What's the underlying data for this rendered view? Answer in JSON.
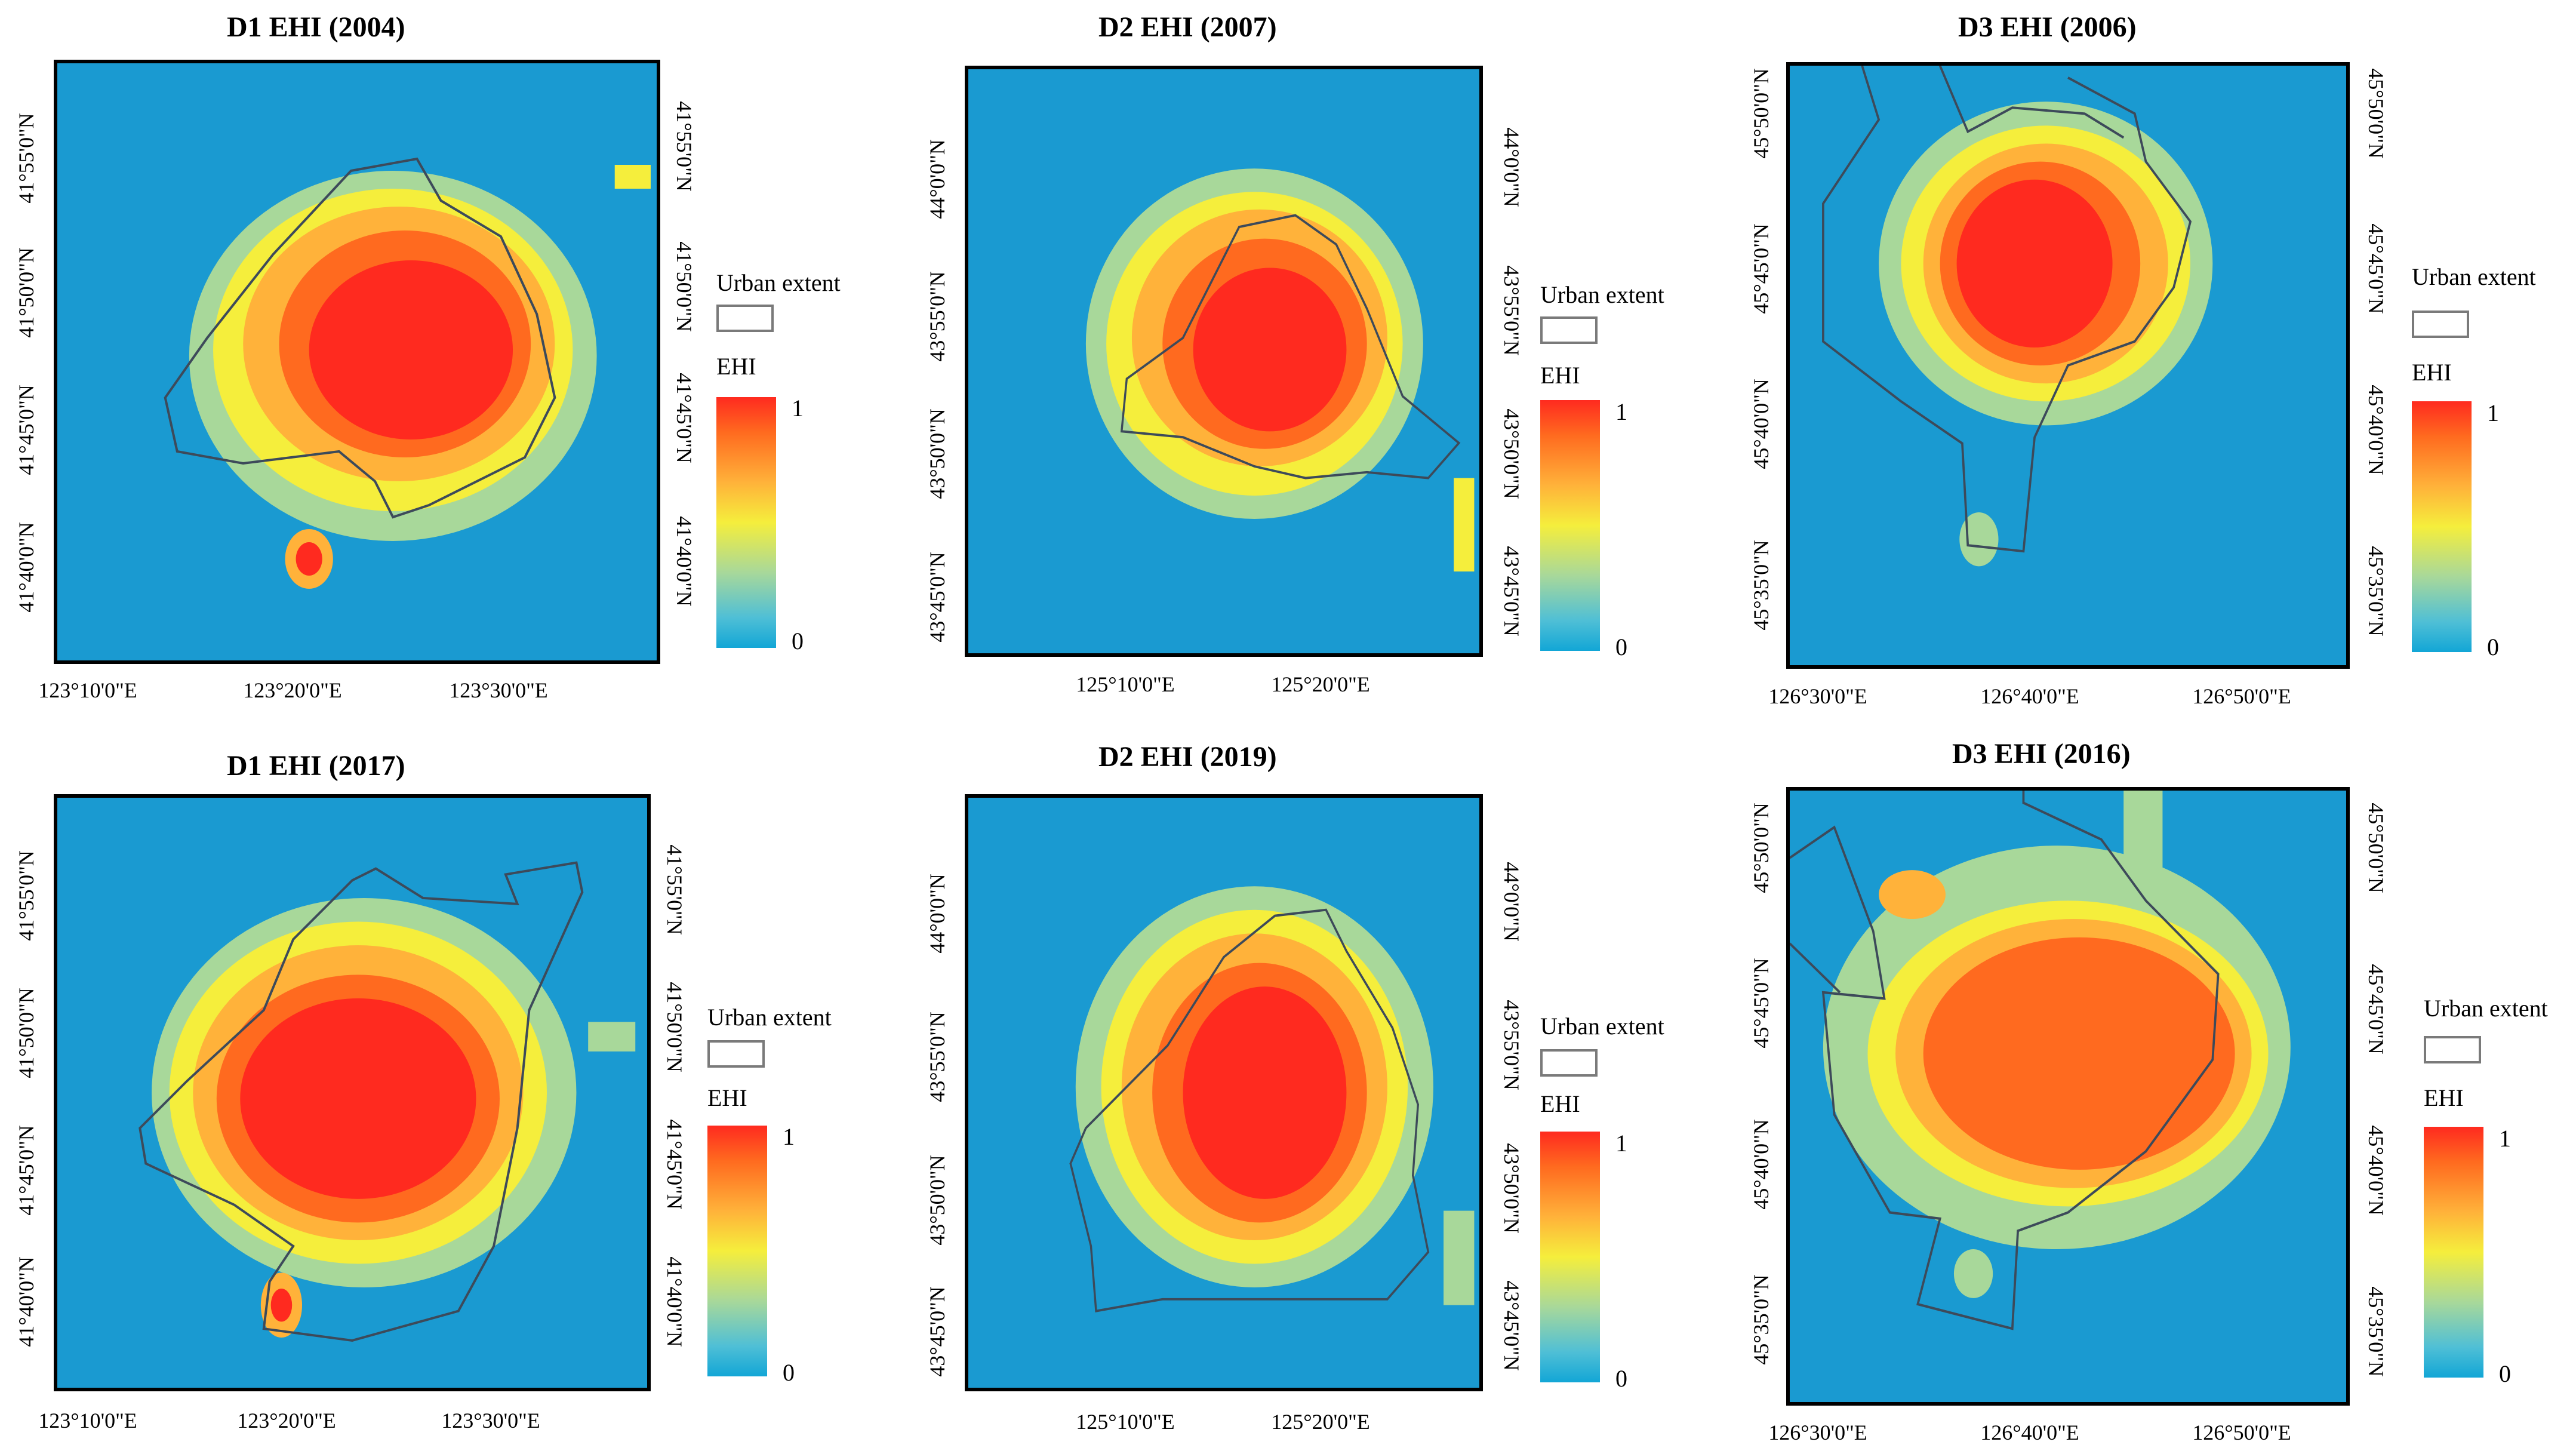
{
  "legend": {
    "urban_extent_label": "Urban extent",
    "ehi_label": "EHI",
    "max_label": "1",
    "min_label": "0",
    "colors": [
      "#ff2a1f",
      "#ff6a1f",
      "#ffb23a",
      "#f5ee3c",
      "#a8d89a",
      "#4fbfd6",
      "#12a6d6"
    ]
  },
  "background_color": "#1a9ad1",
  "boundary_color": "#3d4a5a",
  "panels": [
    {
      "title": "D1 EHI (2004)",
      "lon": [
        "123°10'0\"E",
        "123°20'0\"E",
        "123°30'0\"E"
      ],
      "lat_left": [
        "41°55'0\"N",
        "41°50'0\"N",
        "41°45'0\"N",
        "41°40'0\"N"
      ],
      "lat_right": [
        "41°55'0\"N",
        "41°50'0\"N",
        "41°45'0\"N",
        "41°40'0\"N"
      ]
    },
    {
      "title": "D2 EHI (2007)",
      "lon": [
        "125°10'0\"E",
        "125°20'0\"E"
      ],
      "lat_left": [
        "44°0'0\"N",
        "43°55'0\"N",
        "43°50'0\"N",
        "43°45'0\"N"
      ],
      "lat_right": [
        "44°0'0\"N",
        "43°55'0\"N",
        "43°50'0\"N",
        "43°45'0\"N"
      ]
    },
    {
      "title": "D3 EHI (2006)",
      "lon": [
        "126°30'0\"E",
        "126°40'0\"E",
        "126°50'0\"E"
      ],
      "lat_left": [
        "45°50'0\"N",
        "45°45'0\"N",
        "45°40'0\"N",
        "45°35'0\"N"
      ],
      "lat_right": [
        "45°50'0\"N",
        "45°45'0\"N",
        "45°40'0\"N",
        "45°35'0\"N"
      ]
    },
    {
      "title": "D1 EHI (2017)",
      "lon": [
        "123°10'0\"E",
        "123°20'0\"E",
        "123°30'0\"E"
      ],
      "lat_left": [
        "41°55'0\"N",
        "41°50'0\"N",
        "41°45'0\"N",
        "41°40'0\"N"
      ],
      "lat_right": [
        "41°55'0\"N",
        "41°50'0\"N",
        "41°45'0\"N",
        "41°40'0\"N"
      ]
    },
    {
      "title": "D2 EHI (2019)",
      "lon": [
        "125°10'0\"E",
        "125°20'0\"E"
      ],
      "lat_left": [
        "44°0'0\"N",
        "43°55'0\"N",
        "43°50'0\"N",
        "43°45'0\"N"
      ],
      "lat_right": [
        "44°0'0\"N",
        "43°55'0\"N",
        "43°50'0\"N",
        "43°45'0\"N"
      ]
    },
    {
      "title": "D3 EHI (2016)",
      "lon": [
        "126°30'0\"E",
        "126°40'0\"E",
        "126°50'0\"E"
      ],
      "lat_left": [
        "45°50'0\"N",
        "45°45'0\"N",
        "45°40'0\"N",
        "45°35'0\"N"
      ],
      "lat_right": [
        "45°50'0\"N",
        "45°45'0\"N",
        "45°40'0\"N",
        "45°35'0\"N"
      ]
    }
  ]
}
